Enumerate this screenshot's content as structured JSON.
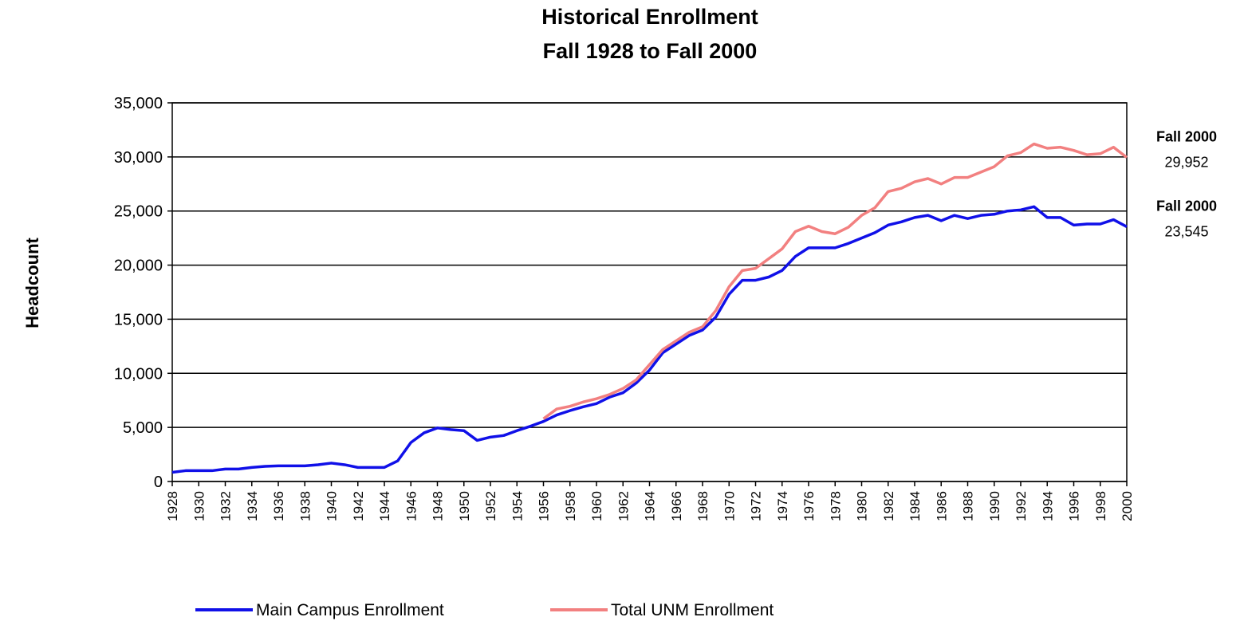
{
  "chart_data": {
    "type": "line",
    "title": "Historical Enrollment",
    "subtitle": "Fall 1928 to Fall 2000",
    "ylabel": "Headcount",
    "x": [
      1928,
      1929,
      1930,
      1931,
      1932,
      1933,
      1934,
      1935,
      1936,
      1937,
      1938,
      1939,
      1940,
      1941,
      1942,
      1943,
      1944,
      1945,
      1946,
      1947,
      1948,
      1949,
      1950,
      1951,
      1952,
      1953,
      1954,
      1955,
      1956,
      1957,
      1958,
      1959,
      1960,
      1961,
      1962,
      1963,
      1964,
      1965,
      1966,
      1967,
      1968,
      1969,
      1970,
      1971,
      1972,
      1973,
      1974,
      1975,
      1976,
      1977,
      1978,
      1979,
      1980,
      1981,
      1982,
      1983,
      1984,
      1985,
      1986,
      1987,
      1988,
      1989,
      1990,
      1991,
      1992,
      1993,
      1994,
      1995,
      1996,
      1997,
      1998,
      1999,
      2000
    ],
    "xlim": [
      1928,
      2000
    ],
    "xticks": [
      1928,
      1930,
      1932,
      1934,
      1936,
      1938,
      1940,
      1942,
      1944,
      1946,
      1948,
      1950,
      1952,
      1954,
      1956,
      1958,
      1960,
      1962,
      1964,
      1966,
      1968,
      1970,
      1972,
      1974,
      1976,
      1978,
      1980,
      1982,
      1984,
      1986,
      1988,
      1990,
      1992,
      1994,
      1996,
      1998,
      2000
    ],
    "ylim": [
      0,
      35000
    ],
    "yticks": [
      0,
      {
        "value": 5000,
        "label": "5,000"
      },
      {
        "value": 10000,
        "label": "10,000"
      },
      {
        "value": 15000,
        "label": "15,000"
      },
      {
        "value": 20000,
        "label": "20,000"
      },
      {
        "value": 25000,
        "label": "25,000"
      },
      {
        "value": 30000,
        "label": "30,000"
      },
      {
        "value": 35000,
        "label": "35,000"
      }
    ],
    "grid": true,
    "legend": "bottom",
    "annotations": [
      "Fall 2000",
      "Fall 2000"
    ],
    "series": [
      {
        "name": "Main Campus Enrollment",
        "color": "#1010e8",
        "values": [
          850,
          1000,
          1000,
          1000,
          1150,
          1150,
          1300,
          1400,
          1450,
          1450,
          1450,
          1550,
          1700,
          1550,
          1300,
          1300,
          1300,
          1900,
          3600,
          4500,
          4950,
          4800,
          4700,
          3800,
          4100,
          4250,
          4700,
          5100,
          5550,
          6150,
          6550,
          6900,
          7200,
          7800,
          8200,
          9100,
          10300,
          11900,
          12700,
          13500,
          14000,
          15200,
          17300,
          18600,
          18600,
          18900,
          19500,
          20800,
          21600,
          21600,
          21600,
          22000,
          22500,
          23000,
          23700,
          24000,
          24400,
          24600,
          24100,
          24600,
          24300,
          24600,
          24700,
          25000,
          25100,
          25400,
          24400,
          24400,
          23700,
          23800,
          23800,
          24200,
          23545
        ],
        "value_labels": [
          null,
          null,
          null,
          null,
          null,
          null,
          null,
          null,
          null,
          null,
          null,
          null,
          null,
          null,
          null,
          null,
          null,
          null,
          null,
          null,
          null,
          null,
          null,
          null,
          null,
          null,
          null,
          null,
          null,
          null,
          null,
          null,
          null,
          null,
          null,
          null,
          null,
          null,
          null,
          null,
          null,
          null,
          null,
          null,
          null,
          null,
          null,
          null,
          null,
          null,
          null,
          null,
          null,
          null,
          null,
          null,
          null,
          null,
          null,
          null,
          null,
          null,
          null,
          null,
          null,
          null,
          null,
          null,
          null,
          null,
          null,
          null,
          "23,545"
        ]
      },
      {
        "name": "Total UNM Enrollment",
        "color": "#f28080",
        "values": [
          null,
          null,
          null,
          null,
          null,
          null,
          null,
          null,
          null,
          null,
          null,
          null,
          null,
          null,
          null,
          null,
          null,
          null,
          null,
          null,
          null,
          null,
          null,
          null,
          null,
          null,
          null,
          null,
          5800,
          6700,
          6950,
          7350,
          7650,
          8050,
          8600,
          9400,
          10800,
          12200,
          13000,
          13800,
          14300,
          15800,
          18000,
          19500,
          19700,
          20600,
          21500,
          23100,
          23600,
          23100,
          22900,
          23500,
          24600,
          25300,
          26800,
          27100,
          27700,
          28000,
          27500,
          28100,
          28100,
          28600,
          29100,
          30100,
          30400,
          31200,
          30800,
          30900,
          30600,
          30200,
          30300,
          30900,
          29952
        ],
        "value_labels": [
          null,
          null,
          null,
          null,
          null,
          null,
          null,
          null,
          null,
          null,
          null,
          null,
          null,
          null,
          null,
          null,
          null,
          null,
          null,
          null,
          null,
          null,
          null,
          null,
          null,
          null,
          null,
          null,
          null,
          null,
          null,
          null,
          null,
          null,
          null,
          null,
          null,
          null,
          null,
          null,
          null,
          null,
          null,
          null,
          null,
          null,
          null,
          null,
          null,
          null,
          null,
          null,
          null,
          null,
          null,
          null,
          null,
          null,
          null,
          null,
          null,
          null,
          null,
          null,
          null,
          null,
          null,
          null,
          null,
          null,
          null,
          null,
          "29,952"
        ]
      }
    ]
  }
}
